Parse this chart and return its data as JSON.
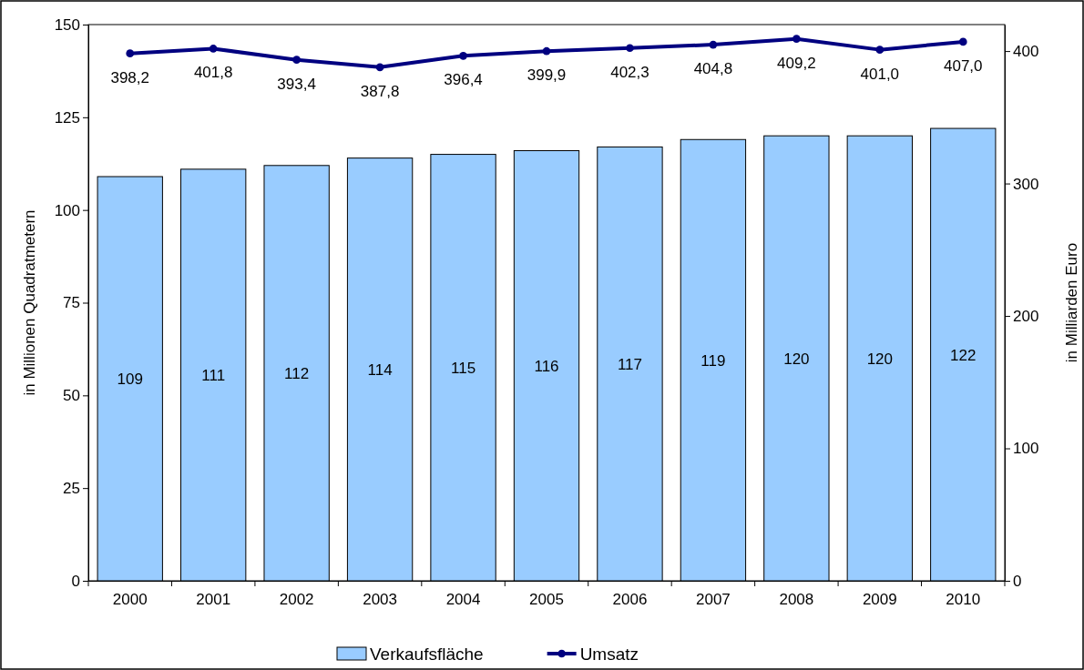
{
  "chart_data": {
    "type": "bar",
    "categories": [
      "2000",
      "2001",
      "2002",
      "2003",
      "2004",
      "2005",
      "2006",
      "2007",
      "2008",
      "2009",
      "2010"
    ],
    "series": [
      {
        "name": "Verkaufsfläche",
        "color": "#99ccff",
        "values": [
          109,
          111,
          112,
          114,
          115,
          116,
          117,
          119,
          120,
          120,
          122
        ],
        "value_labels": [
          "109",
          "111",
          "112",
          "114",
          "115",
          "116",
          "117",
          "119",
          "120",
          "120",
          "122"
        ]
      },
      {
        "name": "Umsatz",
        "type": "line",
        "axis": "y2",
        "color": "#000080",
        "values": [
          398.2,
          401.8,
          393.4,
          387.8,
          396.4,
          399.9,
          402.3,
          404.8,
          409.2,
          401.0,
          407.0
        ],
        "value_labels": [
          "398,2",
          "401,8",
          "393,4",
          "387,8",
          "396,4",
          "399,9",
          "402,3",
          "404,8",
          "409,2",
          "401,0",
          "407,0"
        ]
      }
    ],
    "ylabel": "in Millionen Quadratmetern",
    "y2label": "in Milliarden Euro",
    "ylim": [
      0,
      150
    ],
    "yticks": [
      0,
      25,
      50,
      75,
      100,
      125,
      150
    ],
    "y2lim": [
      0,
      420
    ],
    "y2ticks": [
      0,
      100,
      200,
      300,
      400
    ],
    "marker": "circle",
    "legend": "bottom",
    "grid": false
  }
}
